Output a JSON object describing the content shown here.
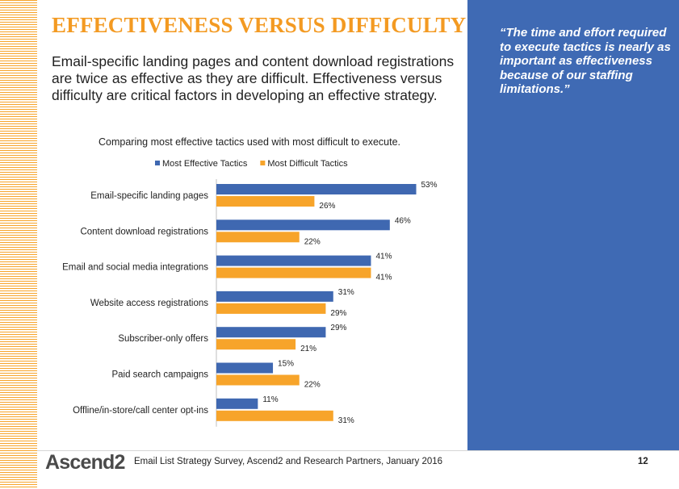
{
  "slide": {
    "title": "EFFECTIVENESS VERSUS DIFFICULTY",
    "intro": "Email-specific landing pages and content download registrations are twice as effective as they are difficult. Effectiveness versus difficulty are critical factors in developing an effective strategy.",
    "quote": "“The time and effort required to execute tactics is nearly as important as effectiveness because of our staffing limitations.”",
    "logo": "Ascend2",
    "source": "Email List Strategy Survey, Ascend2 and Research Partners, January 2016",
    "page_number": "12"
  },
  "colors": {
    "title": "#f39a22",
    "panel": "#3f6ab4",
    "effective": "#3f68b1",
    "difficult": "#f7a42a"
  },
  "chart_data": {
    "type": "bar",
    "orientation": "horizontal",
    "title": "Comparing  most effective tactics used with most difficult to execute.",
    "categories": [
      "Email-specific landing pages",
      "Content download registrations",
      "Email and social media integrations",
      "Website access registrations",
      "Subscriber-only offers",
      "Paid search campaigns",
      "Offline/in-store/call center opt-ins"
    ],
    "series": [
      {
        "name": "Most Effective Tactics",
        "color": "#3f68b1",
        "values": [
          53,
          46,
          41,
          31,
          29,
          15,
          11
        ]
      },
      {
        "name": "Most Difficult Tactics",
        "color": "#f7a42a",
        "values": [
          26,
          22,
          41,
          29,
          21,
          22,
          31
        ]
      }
    ],
    "value_suffix": "%",
    "xlim": [
      0,
      60
    ],
    "grid": false,
    "legend": "top"
  }
}
